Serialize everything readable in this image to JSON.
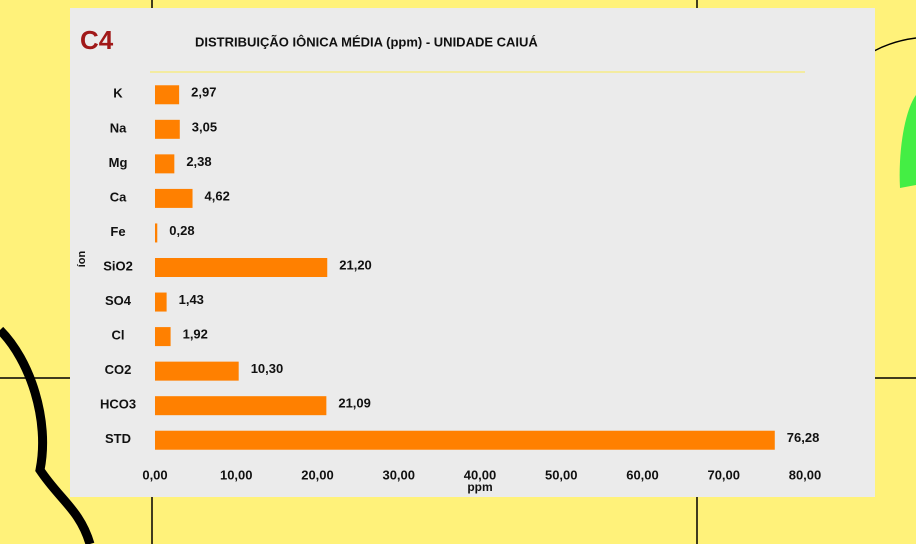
{
  "chart_data": {
    "type": "bar",
    "orientation": "horizontal",
    "label": "C4",
    "title": "DISTRIBUIÇÃO IÔNICA MÉDIA (ppm) - UNIDADE CAIUÁ",
    "x_label": "ppm",
    "y_label": "íon",
    "categories": [
      "K",
      "Na",
      "Mg",
      "Ca",
      "Fe",
      "SiO2",
      "SO4",
      "Cl",
      "CO2",
      "HCO3",
      "STD"
    ],
    "values": [
      2.97,
      3.05,
      2.38,
      4.62,
      0.28,
      21.2,
      1.43,
      1.92,
      10.3,
      21.09,
      76.28
    ],
    "value_labels": [
      "2,97",
      "3,05",
      "2,38",
      "4,62",
      "0,28",
      "21,20",
      "1,43",
      "1,92",
      "10,30",
      "21,09",
      "76,28"
    ],
    "color": "#ff8000",
    "xlim": [
      0,
      80
    ],
    "xticks": [
      {
        "value": 0,
        "label": "0,00"
      },
      {
        "value": 10,
        "label": "10,00"
      },
      {
        "value": 20,
        "label": "20,00"
      },
      {
        "value": 30,
        "label": "30,00"
      },
      {
        "value": 40,
        "label": "40,00"
      },
      {
        "value": 50,
        "label": "50,00"
      },
      {
        "value": 60,
        "label": "60,00"
      },
      {
        "value": 70,
        "label": "70,00"
      },
      {
        "value": 80,
        "label": "80,00"
      }
    ]
  }
}
